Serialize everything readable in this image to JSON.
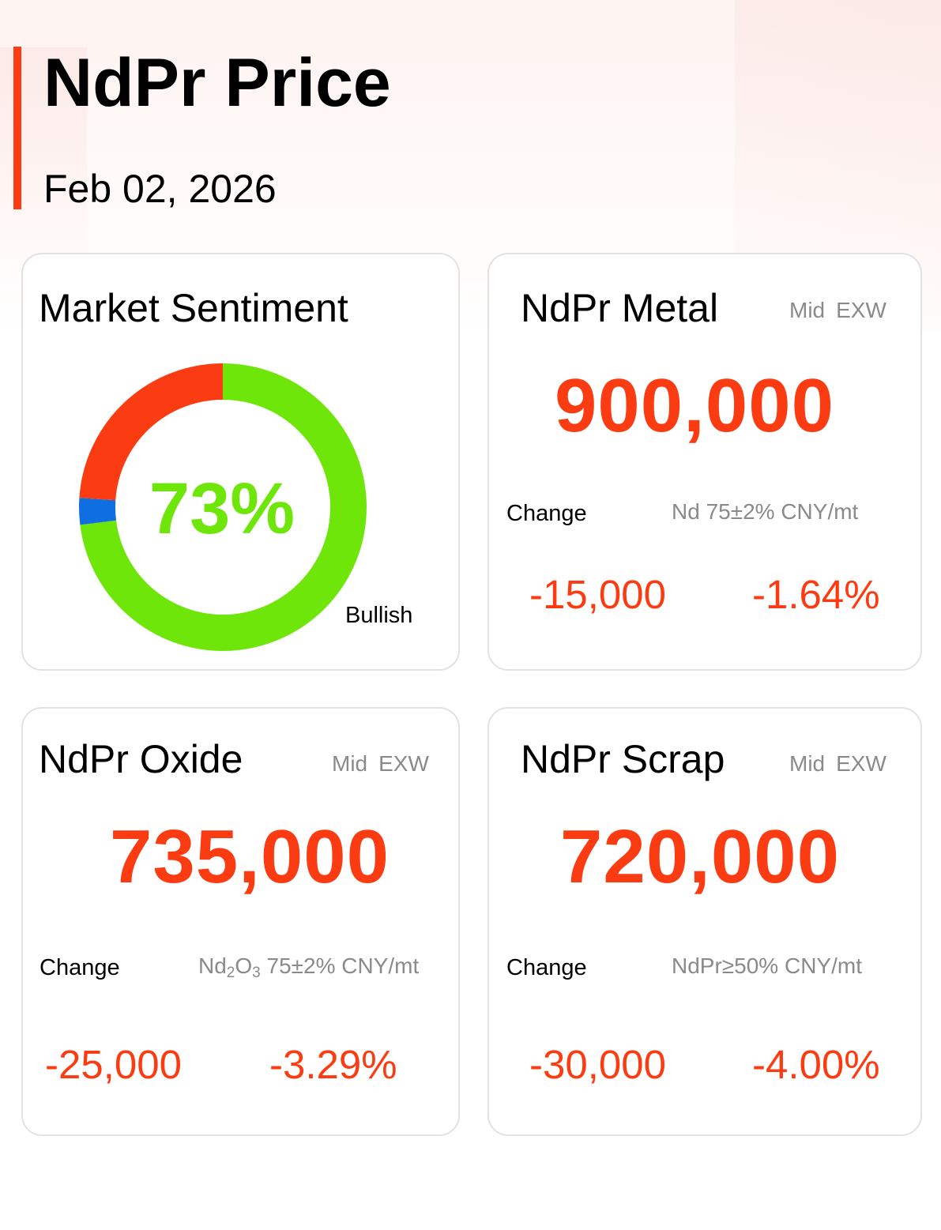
{
  "header": {
    "title": "NdPr Price",
    "date": "Feb 02, 2026"
  },
  "sentiment": {
    "title": "Market Sentiment",
    "percent_label": "73%",
    "label": "Bullish",
    "segments": [
      {
        "name": "bullish",
        "value": 73,
        "color": "#6ee60a"
      },
      {
        "name": "neutral",
        "value": 3,
        "color": "#0f6fe0"
      },
      {
        "name": "bearish",
        "value": 24,
        "color": "#fb3c12"
      }
    ]
  },
  "cards": {
    "metal": {
      "title": "NdPr Metal",
      "mid": "Mid",
      "exw": "EXW",
      "price": "900,000",
      "change_label": "Change",
      "spec": "Nd 75±2% CNY/mt",
      "change_abs": "-15,000",
      "change_pct": "-1.64%"
    },
    "oxide": {
      "title": "NdPr Oxide",
      "mid": "Mid",
      "exw": "EXW",
      "price": "735,000",
      "change_label": "Change",
      "spec_a": "Nd",
      "spec_sub1": "2",
      "spec_b": "O",
      "spec_sub2": "3",
      "spec_c": " 75±2% CNY/mt",
      "change_abs": "-25,000",
      "change_pct": "-3.29%"
    },
    "scrap": {
      "title": "NdPr Scrap",
      "mid": "Mid",
      "exw": "EXW",
      "price": "720,000",
      "change_label": "Change",
      "spec": "NdPr≥50% CNY/mt",
      "change_abs": "-30,000",
      "change_pct": "-4.00%"
    }
  },
  "colors": {
    "accent": "#fb3c12",
    "bullish": "#6ee60a",
    "neutral": "#0f6fe0",
    "muted": "#8a8a8a"
  }
}
